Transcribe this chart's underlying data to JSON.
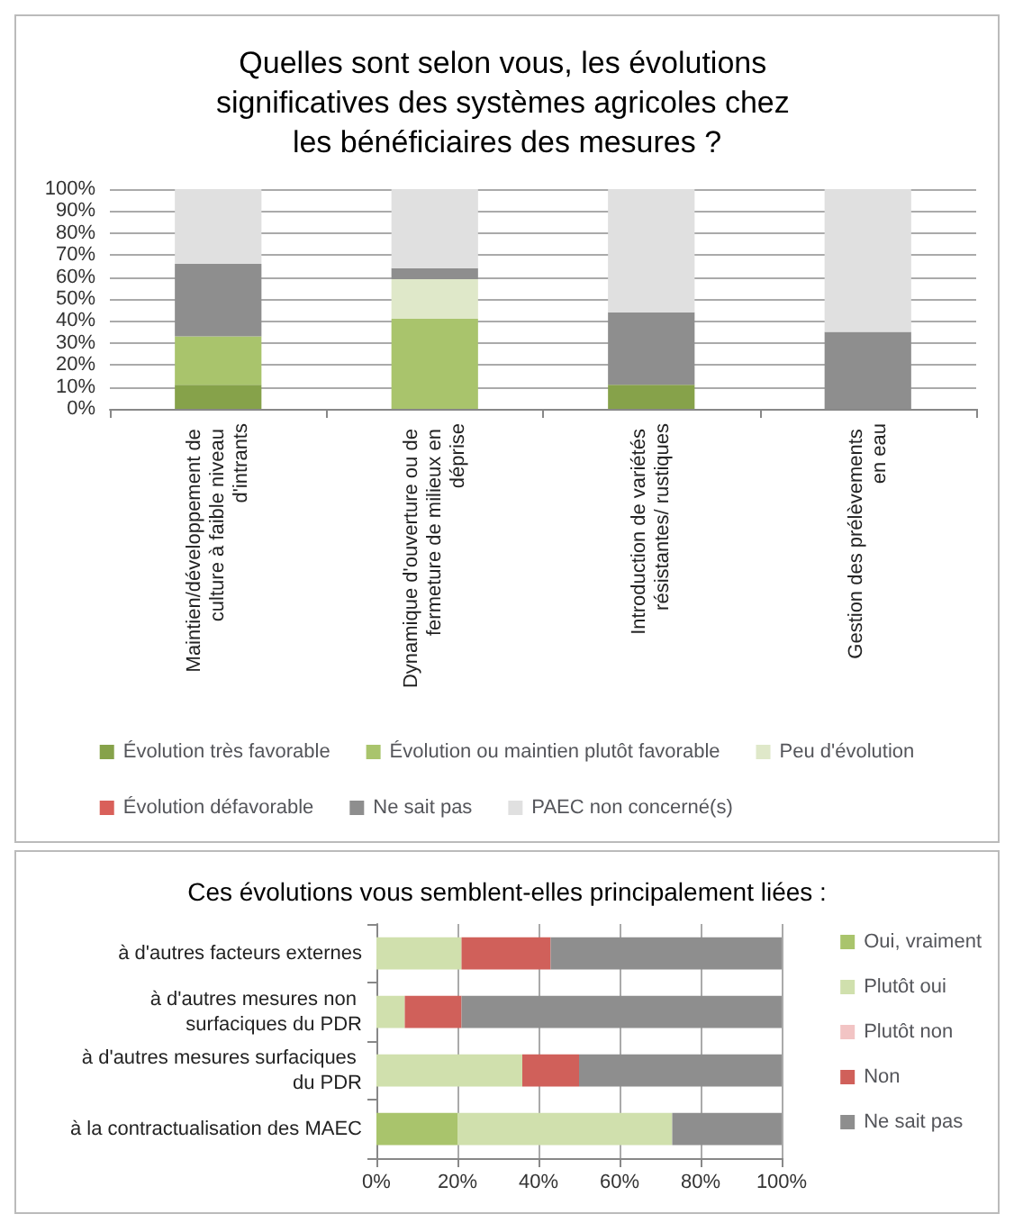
{
  "chart_data": [
    {
      "type": "bar",
      "title": "Quelles sont selon vous, les évolutions significatives des systèmes agricoles chez les bénéficiaires des mesures ?",
      "categories": [
        "Maintien/développement de culture à faible niveau d'intrants",
        "Dynamique d'ouverture ou de fermeture de milieux en déprise",
        "Introduction de variétés résistantes/ rustiques",
        "Gestion des prélèvements en eau"
      ],
      "stacked": true,
      "ylim": [
        0,
        100
      ],
      "yticks": [
        {
          "value": 0,
          "label": "0%"
        },
        {
          "value": 10,
          "label": "10%"
        },
        {
          "value": 20,
          "label": "20%"
        },
        {
          "value": 30,
          "label": "30%"
        },
        {
          "value": 40,
          "label": "40%"
        },
        {
          "value": 50,
          "label": "50%"
        },
        {
          "value": 60,
          "label": "60%"
        },
        {
          "value": 70,
          "label": "70%"
        },
        {
          "value": 80,
          "label": "80%"
        },
        {
          "value": 90,
          "label": "90%"
        },
        {
          "value": 100,
          "label": "100%"
        }
      ],
      "grid": "y",
      "legend": "bottom",
      "series": [
        {
          "name": "Évolution très favorable",
          "color": "#86a24a",
          "values": [
            11,
            0,
            11,
            0
          ]
        },
        {
          "name": "Évolution ou maintien plutôt favorable",
          "color": "#a9c46c",
          "values": [
            22,
            41,
            0,
            0
          ]
        },
        {
          "name": "Peu d'évolution",
          "color": "#dfe8c9",
          "values": [
            0,
            18,
            0,
            0
          ]
        },
        {
          "name": "Évolution défavorable",
          "color": "#d9605a",
          "values": [
            0,
            0,
            0,
            0
          ]
        },
        {
          "name": "Ne sait pas",
          "color": "#8e8e8e",
          "values": [
            33,
            5,
            33,
            35
          ]
        },
        {
          "name": "PAEC non concerné(s)",
          "color": "#e0e0e0",
          "values": [
            34,
            36,
            56,
            65
          ]
        }
      ]
    },
    {
      "type": "bar",
      "title": "Ces évolutions vous semblent-elles principalement liées :",
      "orientation": "horizontal",
      "categories": [
        "à d'autres facteurs externes",
        "à d'autres mesures non surfaciques du PDR",
        "à d'autres mesures surfaciques du PDR",
        "à la contractualisation des MAEC"
      ],
      "stacked": true,
      "xlim": [
        0,
        100
      ],
      "xticks": [
        {
          "value": 0,
          "label": "0%"
        },
        {
          "value": 20,
          "label": "20%"
        },
        {
          "value": 40,
          "label": "40%"
        },
        {
          "value": 60,
          "label": "60%"
        },
        {
          "value": 80,
          "label": "80%"
        },
        {
          "value": 100,
          "label": "100%"
        }
      ],
      "grid": "x",
      "legend": "right",
      "series": [
        {
          "name": "Oui, vraiment",
          "color": "#a9c46c",
          "values": [
            0,
            0,
            0,
            20
          ]
        },
        {
          "name": "Plutôt oui",
          "color": "#d0e0ad",
          "values": [
            21,
            7,
            36,
            53
          ]
        },
        {
          "name": "Plutôt non",
          "color": "#f2c4c4",
          "values": [
            0,
            0,
            0,
            0
          ]
        },
        {
          "name": "Non",
          "color": "#d0605a",
          "values": [
            22,
            14,
            14,
            0
          ]
        },
        {
          "name": "Ne sait pas",
          "color": "#8e8e8e",
          "values": [
            57,
            79,
            50,
            27
          ]
        }
      ]
    }
  ]
}
